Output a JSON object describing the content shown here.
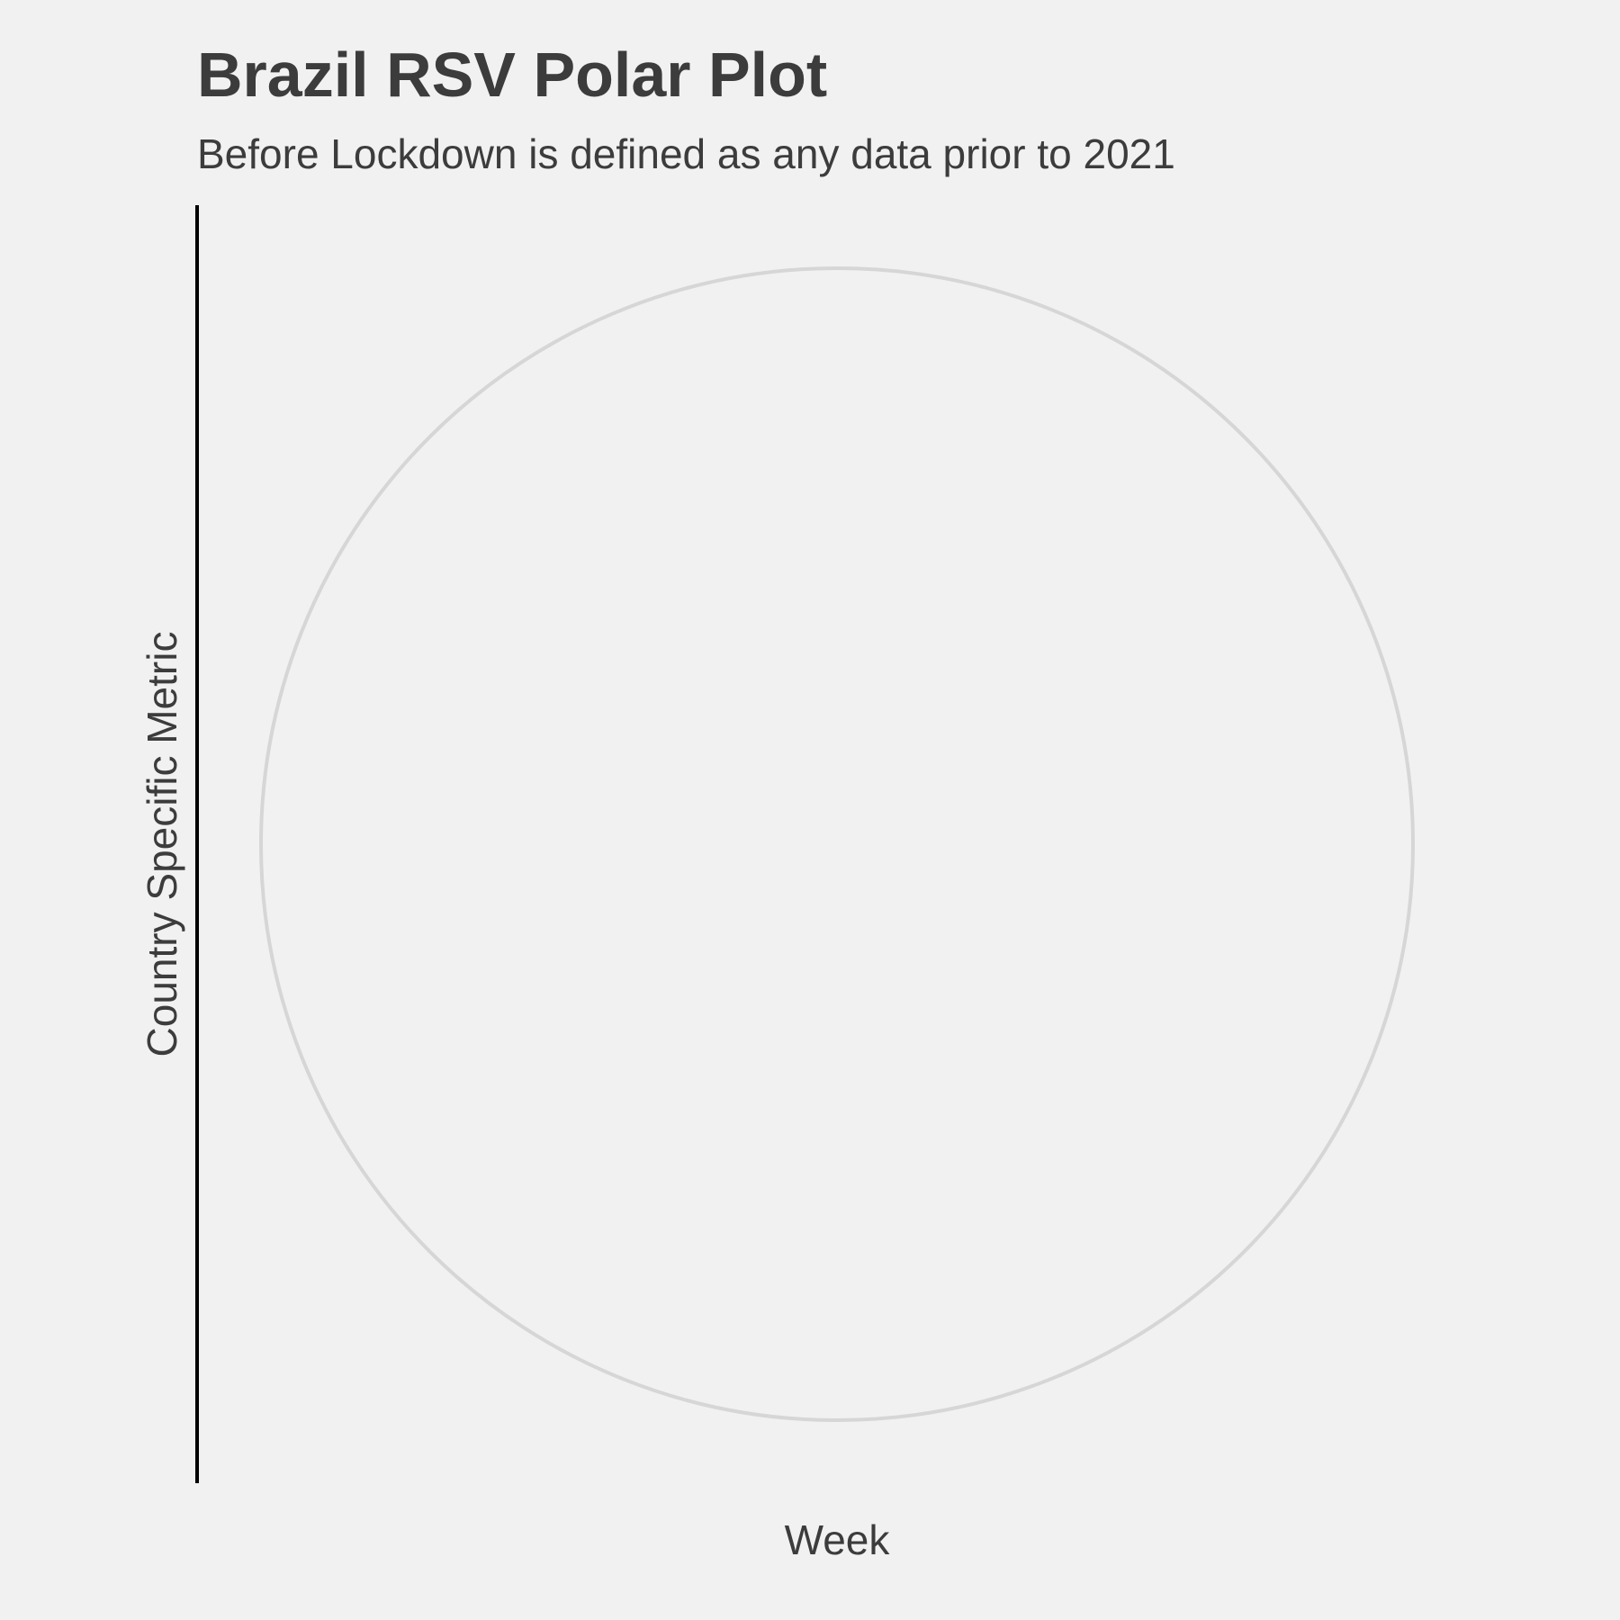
{
  "chart_data": {
    "type": "polar",
    "title": "Brazil RSV Polar Plot",
    "subtitle": "Before Lockdown is defined as any data prior to 2021",
    "xlabel": "Week",
    "ylabel": "Country Specific Metric",
    "series": [],
    "grid": true,
    "legend": "none",
    "colors": {
      "background": "#f1f1f1",
      "grid_circle": "#d6d6d6",
      "axis_line": "#000000",
      "text": "#3c3c3c"
    }
  }
}
